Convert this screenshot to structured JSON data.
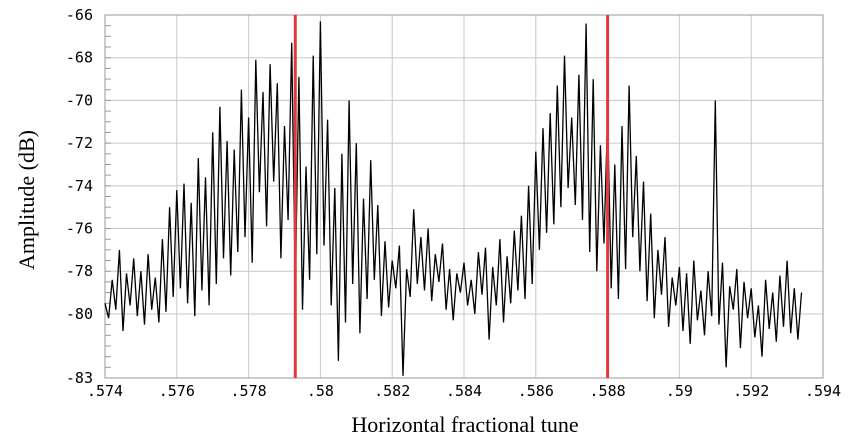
{
  "chart_data": {
    "type": "line",
    "xlabel": "Horizontal fractional tune",
    "ylabel": "Amplitude (dB)",
    "xlim": [
      0.574,
      0.594
    ],
    "ylim": [
      -83,
      -66
    ],
    "x_ticks": [
      0.574,
      0.576,
      0.578,
      0.58,
      0.582,
      0.584,
      0.586,
      0.588,
      0.59,
      0.592,
      0.594
    ],
    "x_tick_labels": [
      ".574",
      ".576",
      ".578",
      ".58",
      ".582",
      ".584",
      ".586",
      ".588",
      ".59",
      ".592",
      ".594"
    ],
    "y_ticks": [
      -66,
      -68,
      -70,
      -72,
      -74,
      -76,
      -78,
      -80,
      -83
    ],
    "y_tick_labels": [
      "-66",
      "-68",
      "-70",
      "-72",
      "-74",
      "-76",
      "-78",
      "-80",
      "-83"
    ],
    "grid": true,
    "colors": {
      "trace": "#000000",
      "markers": "#e8373b",
      "grid": "#c8c8c8"
    },
    "vertical_markers": [
      0.5793,
      0.588
    ],
    "series": [
      {
        "values": [
          [
            0.574,
            -79.5
          ],
          [
            0.5741,
            -80.2
          ],
          [
            0.5742,
            -78.4
          ],
          [
            0.5743,
            -79.8
          ],
          [
            0.5744,
            -77.0
          ],
          [
            0.5745,
            -80.8
          ],
          [
            0.5746,
            -78.1
          ],
          [
            0.5747,
            -79.6
          ],
          [
            0.5748,
            -77.4
          ],
          [
            0.5749,
            -80.1
          ],
          [
            0.575,
            -78.0
          ],
          [
            0.5751,
            -80.5
          ],
          [
            0.5752,
            -77.2
          ],
          [
            0.5753,
            -79.8
          ],
          [
            0.5754,
            -78.3
          ],
          [
            0.5755,
            -80.4
          ],
          [
            0.5756,
            -76.5
          ],
          [
            0.5757,
            -79.9
          ],
          [
            0.5758,
            -75.0
          ],
          [
            0.5759,
            -79.2
          ],
          [
            0.576,
            -74.2
          ],
          [
            0.5761,
            -78.8
          ],
          [
            0.5762,
            -73.9
          ],
          [
            0.5763,
            -79.5
          ],
          [
            0.5764,
            -74.8
          ],
          [
            0.5765,
            -80.1
          ],
          [
            0.5766,
            -72.7
          ],
          [
            0.5767,
            -78.9
          ],
          [
            0.5768,
            -73.6
          ],
          [
            0.5769,
            -79.6
          ],
          [
            0.577,
            -71.5
          ],
          [
            0.5771,
            -78.6
          ],
          [
            0.5772,
            -70.3
          ],
          [
            0.5773,
            -77.4
          ],
          [
            0.5774,
            -71.9
          ],
          [
            0.5775,
            -78.2
          ],
          [
            0.5776,
            -72.3
          ],
          [
            0.5777,
            -77.1
          ],
          [
            0.5778,
            -69.5
          ],
          [
            0.5779,
            -76.4
          ],
          [
            0.578,
            -70.8
          ],
          [
            0.5781,
            -77.6
          ],
          [
            0.5782,
            -68.1
          ],
          [
            0.5783,
            -74.3
          ],
          [
            0.5784,
            -69.6
          ],
          [
            0.5785,
            -75.9
          ],
          [
            0.5786,
            -68.3
          ],
          [
            0.5787,
            -73.8
          ],
          [
            0.5788,
            -69.2
          ],
          [
            0.5789,
            -77.4
          ],
          [
            0.579,
            -71.2
          ],
          [
            0.5791,
            -75.6
          ],
          [
            0.5792,
            -67.3
          ],
          [
            0.5793,
            -78.7
          ],
          [
            0.5794,
            -68.9
          ],
          [
            0.5795,
            -79.8
          ],
          [
            0.5796,
            -73.1
          ],
          [
            0.5797,
            -78.4
          ],
          [
            0.5798,
            -67.9
          ],
          [
            0.5799,
            -77.2
          ],
          [
            0.58,
            -66.3
          ],
          [
            0.5801,
            -76.8
          ],
          [
            0.5802,
            -70.9
          ],
          [
            0.5803,
            -79.6
          ],
          [
            0.5804,
            -74.1
          ],
          [
            0.5805,
            -82.2
          ],
          [
            0.5806,
            -72.5
          ],
          [
            0.5807,
            -80.4
          ],
          [
            0.5808,
            -70.0
          ],
          [
            0.5809,
            -78.6
          ],
          [
            0.581,
            -72.0
          ],
          [
            0.5811,
            -80.9
          ],
          [
            0.5812,
            -74.6
          ],
          [
            0.5813,
            -79.3
          ],
          [
            0.5814,
            -72.8
          ],
          [
            0.5815,
            -78.4
          ],
          [
            0.5816,
            -74.9
          ],
          [
            0.5817,
            -80.1
          ],
          [
            0.5818,
            -76.6
          ],
          [
            0.5819,
            -79.7
          ],
          [
            0.582,
            -77.5
          ],
          [
            0.5821,
            -78.8
          ],
          [
            0.5822,
            -76.8
          ],
          [
            0.5823,
            -82.9
          ],
          [
            0.5824,
            -77.9
          ],
          [
            0.5825,
            -79.2
          ],
          [
            0.5826,
            -75.1
          ],
          [
            0.5827,
            -78.6
          ],
          [
            0.5828,
            -76.4
          ],
          [
            0.5829,
            -78.9
          ],
          [
            0.583,
            -76.0
          ],
          [
            0.5831,
            -79.4
          ],
          [
            0.5832,
            -77.2
          ],
          [
            0.5833,
            -78.5
          ],
          [
            0.5834,
            -76.7
          ],
          [
            0.5835,
            -79.8
          ],
          [
            0.5836,
            -77.9
          ],
          [
            0.5837,
            -80.3
          ],
          [
            0.5838,
            -78.1
          ],
          [
            0.5839,
            -79.0
          ],
          [
            0.584,
            -77.6
          ],
          [
            0.5841,
            -79.6
          ],
          [
            0.5842,
            -78.4
          ],
          [
            0.5843,
            -80.0
          ],
          [
            0.5844,
            -77.1
          ],
          [
            0.5845,
            -79.1
          ],
          [
            0.5846,
            -76.9
          ],
          [
            0.5847,
            -81.2
          ],
          [
            0.5848,
            -77.8
          ],
          [
            0.5849,
            -79.6
          ],
          [
            0.585,
            -76.5
          ],
          [
            0.5851,
            -80.4
          ],
          [
            0.5852,
            -77.3
          ],
          [
            0.5853,
            -79.5
          ],
          [
            0.5854,
            -76.1
          ],
          [
            0.5855,
            -78.9
          ],
          [
            0.5856,
            -75.4
          ],
          [
            0.5857,
            -79.3
          ],
          [
            0.5858,
            -74.0
          ],
          [
            0.5859,
            -78.6
          ],
          [
            0.586,
            -72.4
          ],
          [
            0.5861,
            -77.0
          ],
          [
            0.5862,
            -71.3
          ],
          [
            0.5863,
            -76.2
          ],
          [
            0.5864,
            -70.6
          ],
          [
            0.5865,
            -75.8
          ],
          [
            0.5866,
            -69.3
          ],
          [
            0.5867,
            -75.0
          ],
          [
            0.5868,
            -67.9
          ],
          [
            0.5869,
            -74.1
          ],
          [
            0.587,
            -70.8
          ],
          [
            0.5871,
            -74.9
          ],
          [
            0.5872,
            -68.8
          ],
          [
            0.5873,
            -75.6
          ],
          [
            0.5874,
            -66.4
          ],
          [
            0.5875,
            -77.1
          ],
          [
            0.5876,
            -69.0
          ],
          [
            0.5877,
            -78.0
          ],
          [
            0.5878,
            -72.1
          ],
          [
            0.5879,
            -76.7
          ],
          [
            0.588,
            -70.7
          ],
          [
            0.5881,
            -78.8
          ],
          [
            0.5882,
            -73.0
          ],
          [
            0.5883,
            -79.3
          ],
          [
            0.5884,
            -71.2
          ],
          [
            0.5885,
            -77.9
          ],
          [
            0.5886,
            -69.3
          ],
          [
            0.5887,
            -76.4
          ],
          [
            0.5888,
            -72.6
          ],
          [
            0.5889,
            -78.0
          ],
          [
            0.589,
            -73.8
          ],
          [
            0.5891,
            -79.4
          ],
          [
            0.5892,
            -75.3
          ],
          [
            0.5893,
            -80.2
          ],
          [
            0.5894,
            -77.0
          ],
          [
            0.5895,
            -79.1
          ],
          [
            0.5896,
            -76.4
          ],
          [
            0.5897,
            -80.6
          ],
          [
            0.5898,
            -78.3
          ],
          [
            0.5899,
            -79.6
          ],
          [
            0.59,
            -77.8
          ],
          [
            0.5901,
            -80.8
          ],
          [
            0.5902,
            -78.1
          ],
          [
            0.5903,
            -81.4
          ],
          [
            0.5904,
            -77.5
          ],
          [
            0.5905,
            -80.3
          ],
          [
            0.5906,
            -78.9
          ],
          [
            0.5907,
            -81.0
          ],
          [
            0.5908,
            -78.0
          ],
          [
            0.5909,
            -80.1
          ],
          [
            0.591,
            -70.0
          ],
          [
            0.5911,
            -80.5
          ],
          [
            0.5912,
            -77.6
          ],
          [
            0.5913,
            -82.5
          ],
          [
            0.5914,
            -78.7
          ],
          [
            0.5915,
            -79.8
          ],
          [
            0.5916,
            -77.9
          ],
          [
            0.5917,
            -81.6
          ],
          [
            0.5918,
            -78.5
          ],
          [
            0.5919,
            -80.2
          ],
          [
            0.592,
            -78.8
          ],
          [
            0.5921,
            -81.1
          ],
          [
            0.5922,
            -79.6
          ],
          [
            0.5923,
            -82.0
          ],
          [
            0.5924,
            -78.4
          ],
          [
            0.5925,
            -80.7
          ],
          [
            0.5926,
            -79.0
          ],
          [
            0.5927,
            -81.3
          ],
          [
            0.5928,
            -78.2
          ],
          [
            0.5929,
            -80.6
          ],
          [
            0.593,
            -77.5
          ],
          [
            0.5931,
            -80.9
          ],
          [
            0.5932,
            -78.8
          ],
          [
            0.5933,
            -81.2
          ],
          [
            0.5934,
            -79.0
          ]
        ]
      }
    ]
  }
}
